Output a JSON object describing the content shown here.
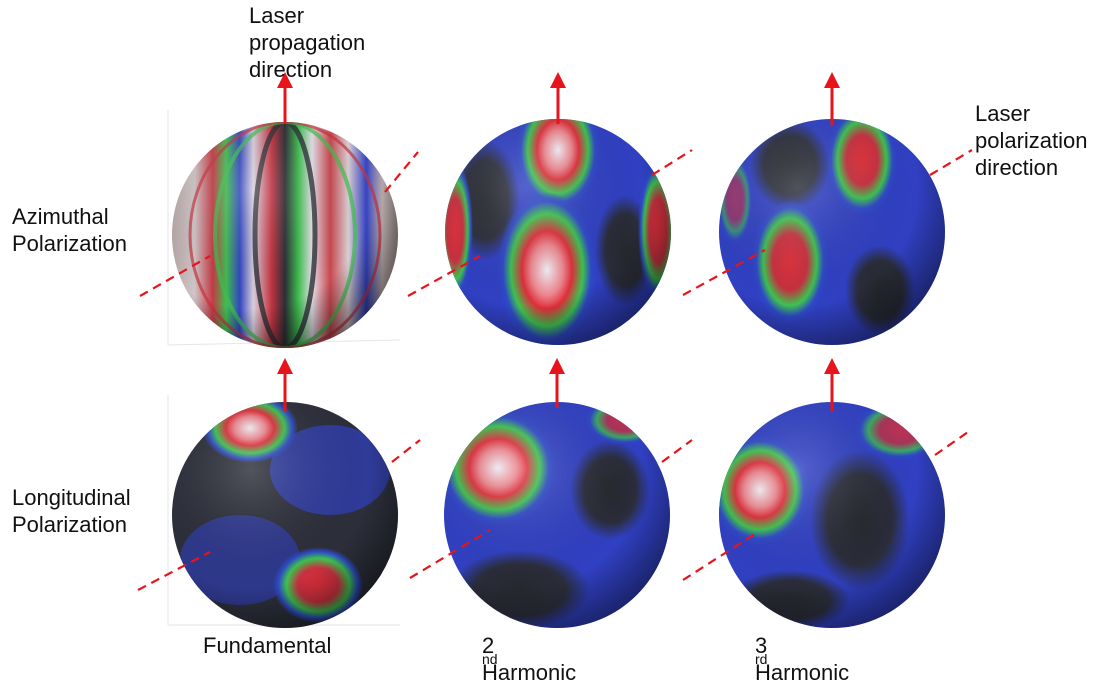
{
  "labels": {
    "propagation": [
      "Laser",
      "propagation",
      "direction"
    ],
    "polarization": [
      "Laser",
      "polarization",
      "direction"
    ],
    "rows": {
      "azimuthal": [
        "Azimuthal",
        "Polarization"
      ],
      "longitudinal": [
        "Longitudinal",
        "Polarization"
      ]
    },
    "columns": {
      "fundamental": "Fundamental",
      "second": {
        "num": "2",
        "sup": "nd",
        "rest": " Harmonic"
      },
      "third": {
        "num": "3",
        "sup": "rd",
        "rest": " Harmonic"
      }
    }
  },
  "colors": {
    "arrow": "#e8141b",
    "dash": "#e8141b",
    "sphere_dark": "#2b2d33",
    "sphere_blue": "#2f3fc4",
    "lobe_green": "#39c24a",
    "lobe_red": "#e0303a",
    "lobe_white": "#f2eef6"
  },
  "spheres": [
    {
      "name": "sphere-azimuthal-fundamental",
      "pattern": "meridian-stripes"
    },
    {
      "name": "sphere-azimuthal-2nd-harmonic",
      "pattern": "vertical-lobes"
    },
    {
      "name": "sphere-azimuthal-3rd-harmonic",
      "pattern": "side-lobes"
    },
    {
      "name": "sphere-longitudinal-fundamental",
      "pattern": "polar-lobes"
    },
    {
      "name": "sphere-longitudinal-2nd-harmonic",
      "pattern": "upper-left-lobe"
    },
    {
      "name": "sphere-longitudinal-3rd-harmonic",
      "pattern": "left-lobe"
    }
  ]
}
